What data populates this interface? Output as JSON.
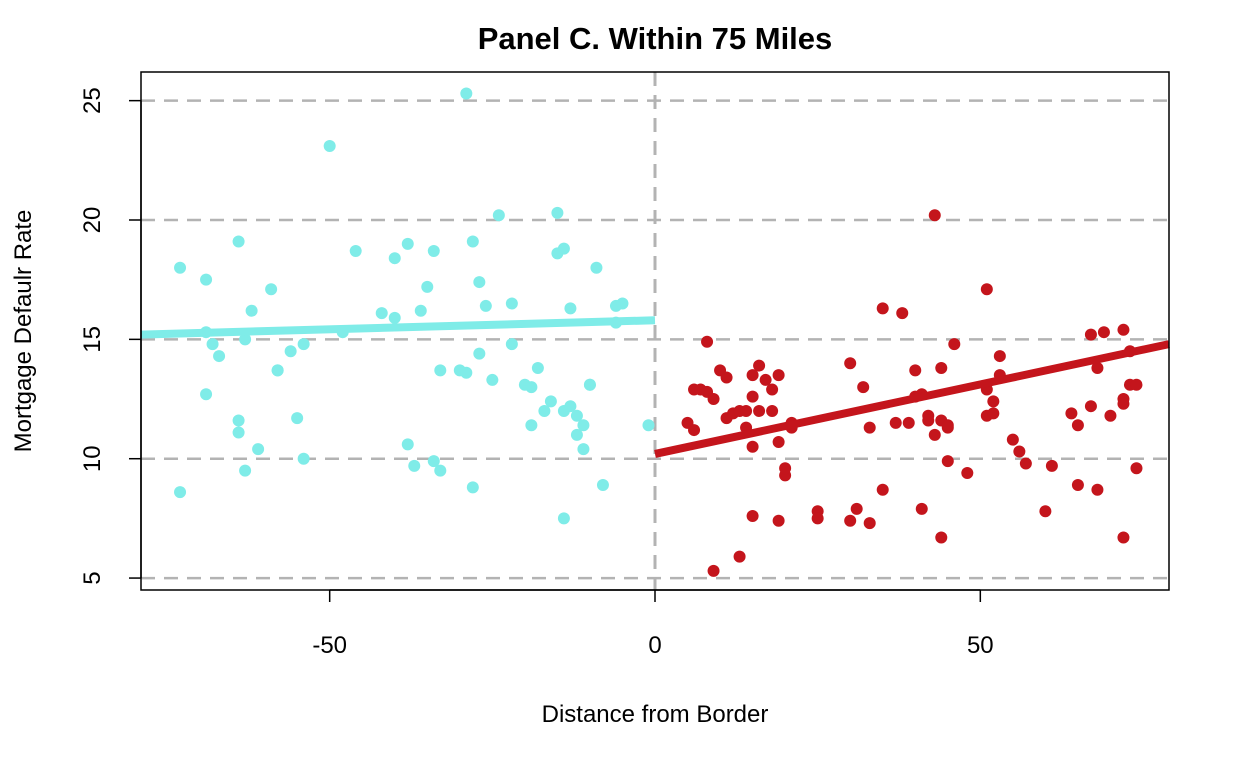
{
  "chart_data": {
    "type": "scatter",
    "title": "Panel C. Within 75 Miles",
    "xlabel": "Distance from Border",
    "ylabel": "Mortgage Defaulr Rate",
    "xlim": [
      -79,
      79
    ],
    "ylim": [
      4.5,
      26.2
    ],
    "x_ticks": [
      -50,
      0,
      50
    ],
    "x_tick_labels": [
      "-50",
      "0",
      "50"
    ],
    "y_ticks": [
      5,
      10,
      15,
      20,
      25
    ],
    "y_tick_labels": [
      "5",
      "10",
      "15",
      "20",
      "25"
    ],
    "grid": "horizontal dashed at y ticks",
    "vline_at": 0,
    "colors": {
      "left": "#7fece8",
      "right": "#c4151c",
      "grid": "#b3b3b3",
      "frame": "#000000"
    },
    "series": [
      {
        "side": "left",
        "points": [
          [
            -73,
            18.0
          ],
          [
            -73,
            8.6
          ],
          [
            -69,
            17.5
          ],
          [
            -69,
            15.3
          ],
          [
            -69,
            12.7
          ],
          [
            -68,
            14.8
          ],
          [
            -67,
            14.3
          ],
          [
            -64,
            19.1
          ],
          [
            -64,
            11.6
          ],
          [
            -64,
            11.1
          ],
          [
            -63,
            15.0
          ],
          [
            -63,
            9.5
          ],
          [
            -62,
            16.2
          ],
          [
            -61,
            10.4
          ],
          [
            -59,
            17.1
          ],
          [
            -58,
            13.7
          ],
          [
            -58,
            13.7
          ],
          [
            -56,
            14.5
          ],
          [
            -55,
            11.7
          ],
          [
            -54,
            14.8
          ],
          [
            -54,
            10.0
          ],
          [
            -50,
            23.1
          ],
          [
            -48,
            15.3
          ],
          [
            -46,
            18.7
          ],
          [
            -42,
            16.1
          ],
          [
            -40,
            18.4
          ],
          [
            -40,
            15.9
          ],
          [
            -38,
            19.0
          ],
          [
            -38,
            10.6
          ],
          [
            -37,
            9.7
          ],
          [
            -36,
            16.2
          ],
          [
            -35,
            17.2
          ],
          [
            -34,
            18.7
          ],
          [
            -34,
            9.9
          ],
          [
            -33,
            13.7
          ],
          [
            -33,
            9.5
          ],
          [
            -30,
            13.7
          ],
          [
            -29,
            25.3
          ],
          [
            -29,
            13.6
          ],
          [
            -28,
            8.8
          ],
          [
            -28,
            19.1
          ],
          [
            -27,
            14.4
          ],
          [
            -27,
            17.4
          ],
          [
            -26,
            16.4
          ],
          [
            -25,
            13.3
          ],
          [
            -24,
            20.2
          ],
          [
            -22,
            16.5
          ],
          [
            -22,
            14.8
          ],
          [
            -20,
            13.1
          ],
          [
            -19,
            13.0
          ],
          [
            -19,
            11.4
          ],
          [
            -18,
            13.8
          ],
          [
            -17,
            12.0
          ],
          [
            -16,
            12.4
          ],
          [
            -15,
            18.6
          ],
          [
            -15,
            20.3
          ],
          [
            -14,
            18.8
          ],
          [
            -14,
            12.0
          ],
          [
            -14,
            7.5
          ],
          [
            -13,
            16.3
          ],
          [
            -13,
            12.2
          ],
          [
            -12,
            11.0
          ],
          [
            -12,
            11.8
          ],
          [
            -11,
            10.4
          ],
          [
            -11,
            11.4
          ],
          [
            -10,
            13.1
          ],
          [
            -10,
            13.1
          ],
          [
            -9,
            18.0
          ],
          [
            -8,
            8.9
          ],
          [
            -6,
            15.7
          ],
          [
            -6,
            16.4
          ],
          [
            -5,
            16.5
          ],
          [
            -1,
            11.4
          ]
        ],
        "fit_line": {
          "x": [
            -79,
            0
          ],
          "y": [
            15.2,
            15.8
          ]
        }
      },
      {
        "side": "right",
        "points": [
          [
            5,
            11.5
          ],
          [
            6,
            12.9
          ],
          [
            6,
            11.2
          ],
          [
            7,
            12.9
          ],
          [
            8,
            14.9
          ],
          [
            8,
            12.8
          ],
          [
            9,
            5.3
          ],
          [
            9,
            12.5
          ],
          [
            10,
            13.7
          ],
          [
            11,
            11.7
          ],
          [
            11,
            13.4
          ],
          [
            12,
            11.9
          ],
          [
            13,
            5.9
          ],
          [
            13,
            12.0
          ],
          [
            14,
            11.3
          ],
          [
            14,
            12.0
          ],
          [
            15,
            12.6
          ],
          [
            15,
            10.5
          ],
          [
            15,
            7.6
          ],
          [
            15,
            13.5
          ],
          [
            16,
            13.9
          ],
          [
            16,
            12.0
          ],
          [
            17,
            13.3
          ],
          [
            18,
            12.0
          ],
          [
            18,
            12.9
          ],
          [
            19,
            10.7
          ],
          [
            19,
            13.5
          ],
          [
            19,
            7.4
          ],
          [
            20,
            9.3
          ],
          [
            20,
            9.6
          ],
          [
            21,
            11.5
          ],
          [
            21,
            11.3
          ],
          [
            25,
            7.8
          ],
          [
            25,
            7.5
          ],
          [
            30,
            14.0
          ],
          [
            30,
            7.4
          ],
          [
            31,
            7.9
          ],
          [
            32,
            13.0
          ],
          [
            33,
            11.3
          ],
          [
            33,
            7.3
          ],
          [
            35,
            8.7
          ],
          [
            35,
            16.3
          ],
          [
            37,
            11.5
          ],
          [
            38,
            16.1
          ],
          [
            39,
            11.5
          ],
          [
            40,
            13.7
          ],
          [
            40,
            12.6
          ],
          [
            41,
            12.7
          ],
          [
            41,
            7.9
          ],
          [
            42,
            11.8
          ],
          [
            42,
            11.6
          ],
          [
            43,
            20.2
          ],
          [
            43,
            11.0
          ],
          [
            44,
            11.6
          ],
          [
            44,
            6.7
          ],
          [
            44,
            13.8
          ],
          [
            45,
            11.3
          ],
          [
            45,
            9.9
          ],
          [
            45,
            11.4
          ],
          [
            46,
            14.8
          ],
          [
            48,
            9.4
          ],
          [
            51,
            17.1
          ],
          [
            51,
            12.9
          ],
          [
            51,
            11.8
          ],
          [
            52,
            11.9
          ],
          [
            52,
            12.4
          ],
          [
            53,
            13.5
          ],
          [
            53,
            14.3
          ],
          [
            55,
            10.8
          ],
          [
            56,
            10.3
          ],
          [
            57,
            9.8
          ],
          [
            60,
            7.8
          ],
          [
            61,
            9.7
          ],
          [
            64,
            11.9
          ],
          [
            65,
            11.4
          ],
          [
            65,
            8.9
          ],
          [
            67,
            15.2
          ],
          [
            67,
            12.2
          ],
          [
            68,
            13.8
          ],
          [
            68,
            8.7
          ],
          [
            69,
            15.3
          ],
          [
            70,
            11.8
          ],
          [
            72,
            15.4
          ],
          [
            72,
            12.5
          ],
          [
            72,
            12.3
          ],
          [
            72,
            6.7
          ],
          [
            73,
            14.5
          ],
          [
            73,
            13.1
          ],
          [
            74,
            13.1
          ],
          [
            74,
            9.6
          ]
        ],
        "fit_line": {
          "x": [
            0,
            79
          ],
          "y": [
            10.2,
            14.8
          ]
        }
      }
    ]
  }
}
